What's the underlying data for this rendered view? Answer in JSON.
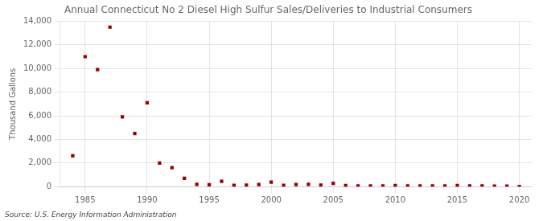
{
  "chart_data": {
    "type": "scatter",
    "title": "Annual Connecticut No 2 Diesel High Sulfur Sales/Deliveries to Industrial Consumers",
    "ylabel": "Thousand Gallons",
    "source": "Source: U.S. Energy Information Administration",
    "x": [
      1984,
      1985,
      1986,
      1987,
      1988,
      1989,
      1990,
      1991,
      1992,
      1993,
      1994,
      1995,
      1996,
      1997,
      1998,
      1999,
      2000,
      2001,
      2002,
      2003,
      2004,
      2005,
      2006,
      2007,
      2008,
      2009,
      2010,
      2011,
      2012,
      2013,
      2014,
      2015,
      2016,
      2017,
      2018,
      2019,
      2020
    ],
    "values": [
      2600,
      11000,
      9900,
      13500,
      5900,
      4500,
      7100,
      2000,
      1600,
      700,
      200,
      150,
      450,
      100,
      120,
      180,
      380,
      100,
      180,
      200,
      130,
      280,
      90,
      50,
      50,
      50,
      90,
      50,
      50,
      50,
      50,
      90,
      50,
      50,
      40,
      40,
      10
    ],
    "color": "#990000",
    "marker": "square",
    "xlim": [
      1983,
      2021
    ],
    "xticks": [
      1985,
      1990,
      1995,
      2000,
      2005,
      2010,
      2015,
      2020
    ],
    "ylim": [
      0,
      14000
    ],
    "yticks": [
      0,
      {
        "value": 2000,
        "label": "2,000"
      },
      {
        "value": 4000,
        "label": "4,000"
      },
      {
        "value": 6000,
        "label": "6,000"
      },
      {
        "value": 8000,
        "label": "8,000"
      },
      {
        "value": 10000,
        "label": "10,000"
      },
      {
        "value": 12000,
        "label": "12,000"
      },
      {
        "value": 14000,
        "label": "14,000"
      }
    ],
    "grid": true
  }
}
